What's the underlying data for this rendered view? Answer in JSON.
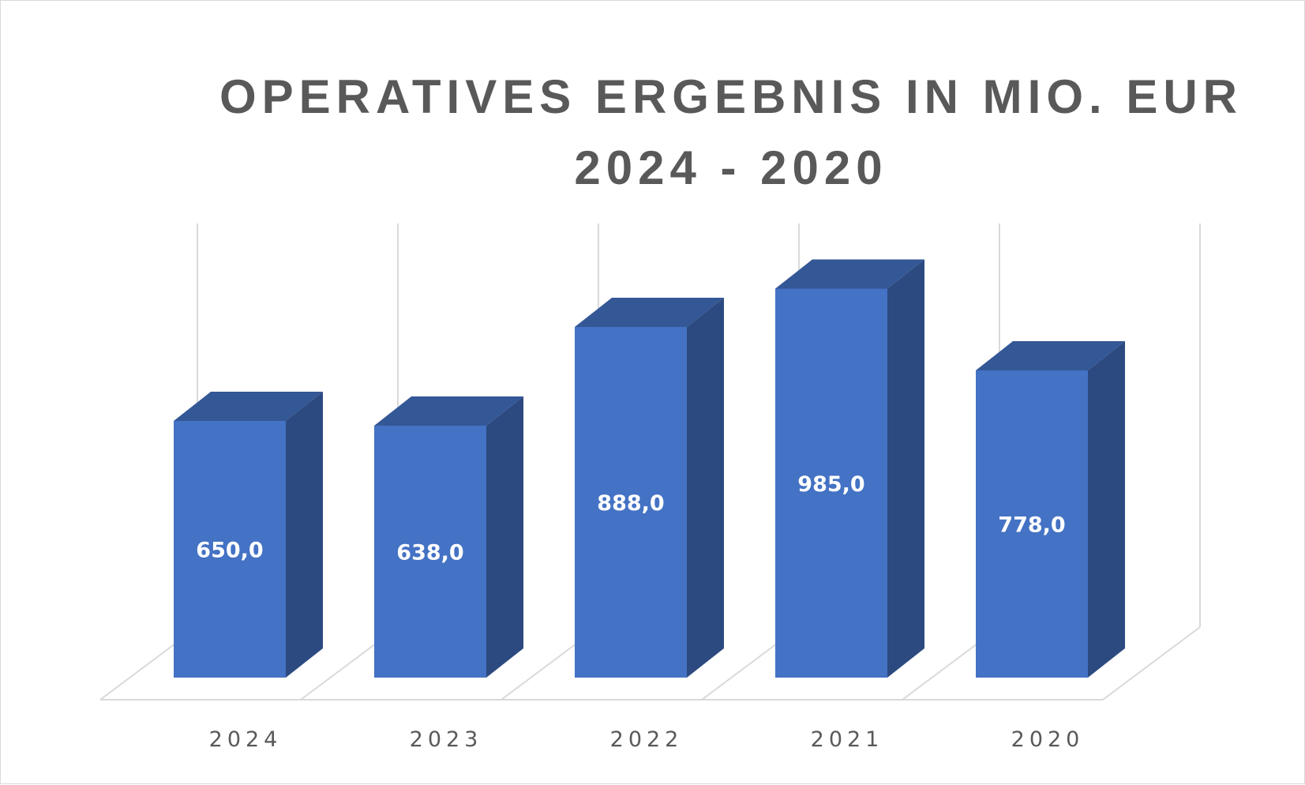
{
  "chart_data": {
    "type": "bar",
    "style": "3d-column",
    "title_lines": [
      "OPERATIVES ERGEBNIS IN MIO. EUR",
      "2024 - 2020"
    ],
    "categories": [
      "2024",
      "2023",
      "2022",
      "2021",
      "2020"
    ],
    "values": [
      650.0,
      638.0,
      888.0,
      985.0,
      778.0
    ],
    "data_labels": [
      "650,0",
      "638,0",
      "888,0",
      "985,0",
      "778,0"
    ],
    "xlabel": "",
    "ylabel": "",
    "ylim": [
      0,
      1000
    ],
    "grid": true,
    "legend": "none",
    "colors": {
      "front": "#4472c4",
      "side": "#2c4a80",
      "top": "#345796",
      "grid": "#d9d9d9",
      "text": "#595959"
    }
  }
}
